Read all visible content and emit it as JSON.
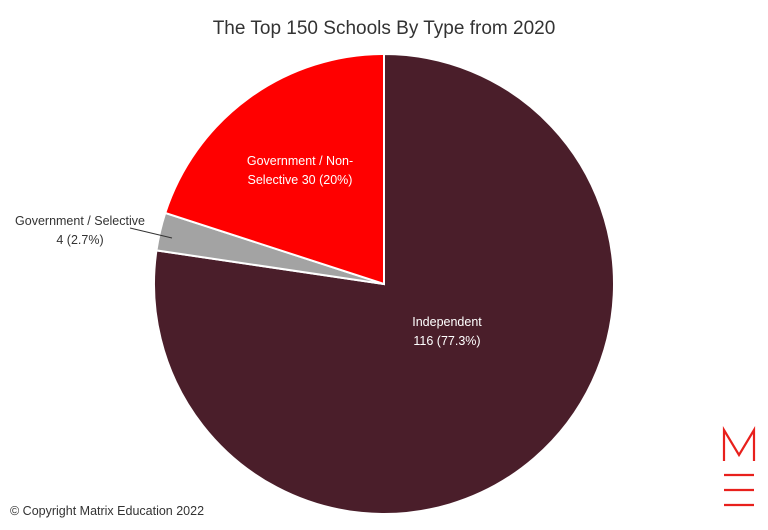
{
  "chart_data": {
    "type": "pie",
    "title": "The Top 150 Schools By Type from 2020",
    "categories": [
      "Independent",
      "Government / Selective",
      "Government / Non-Selective"
    ],
    "values": [
      116,
      4,
      30
    ],
    "value_labels": [
      "116 (77.3%)",
      "4 (2.7%)",
      "30 (20%)"
    ],
    "colors": [
      "#4a1e2a",
      "#a3a3a3",
      "#ff0000"
    ],
    "annotations": [
      "© Copyright Matrix Education 2022"
    ]
  }
}
